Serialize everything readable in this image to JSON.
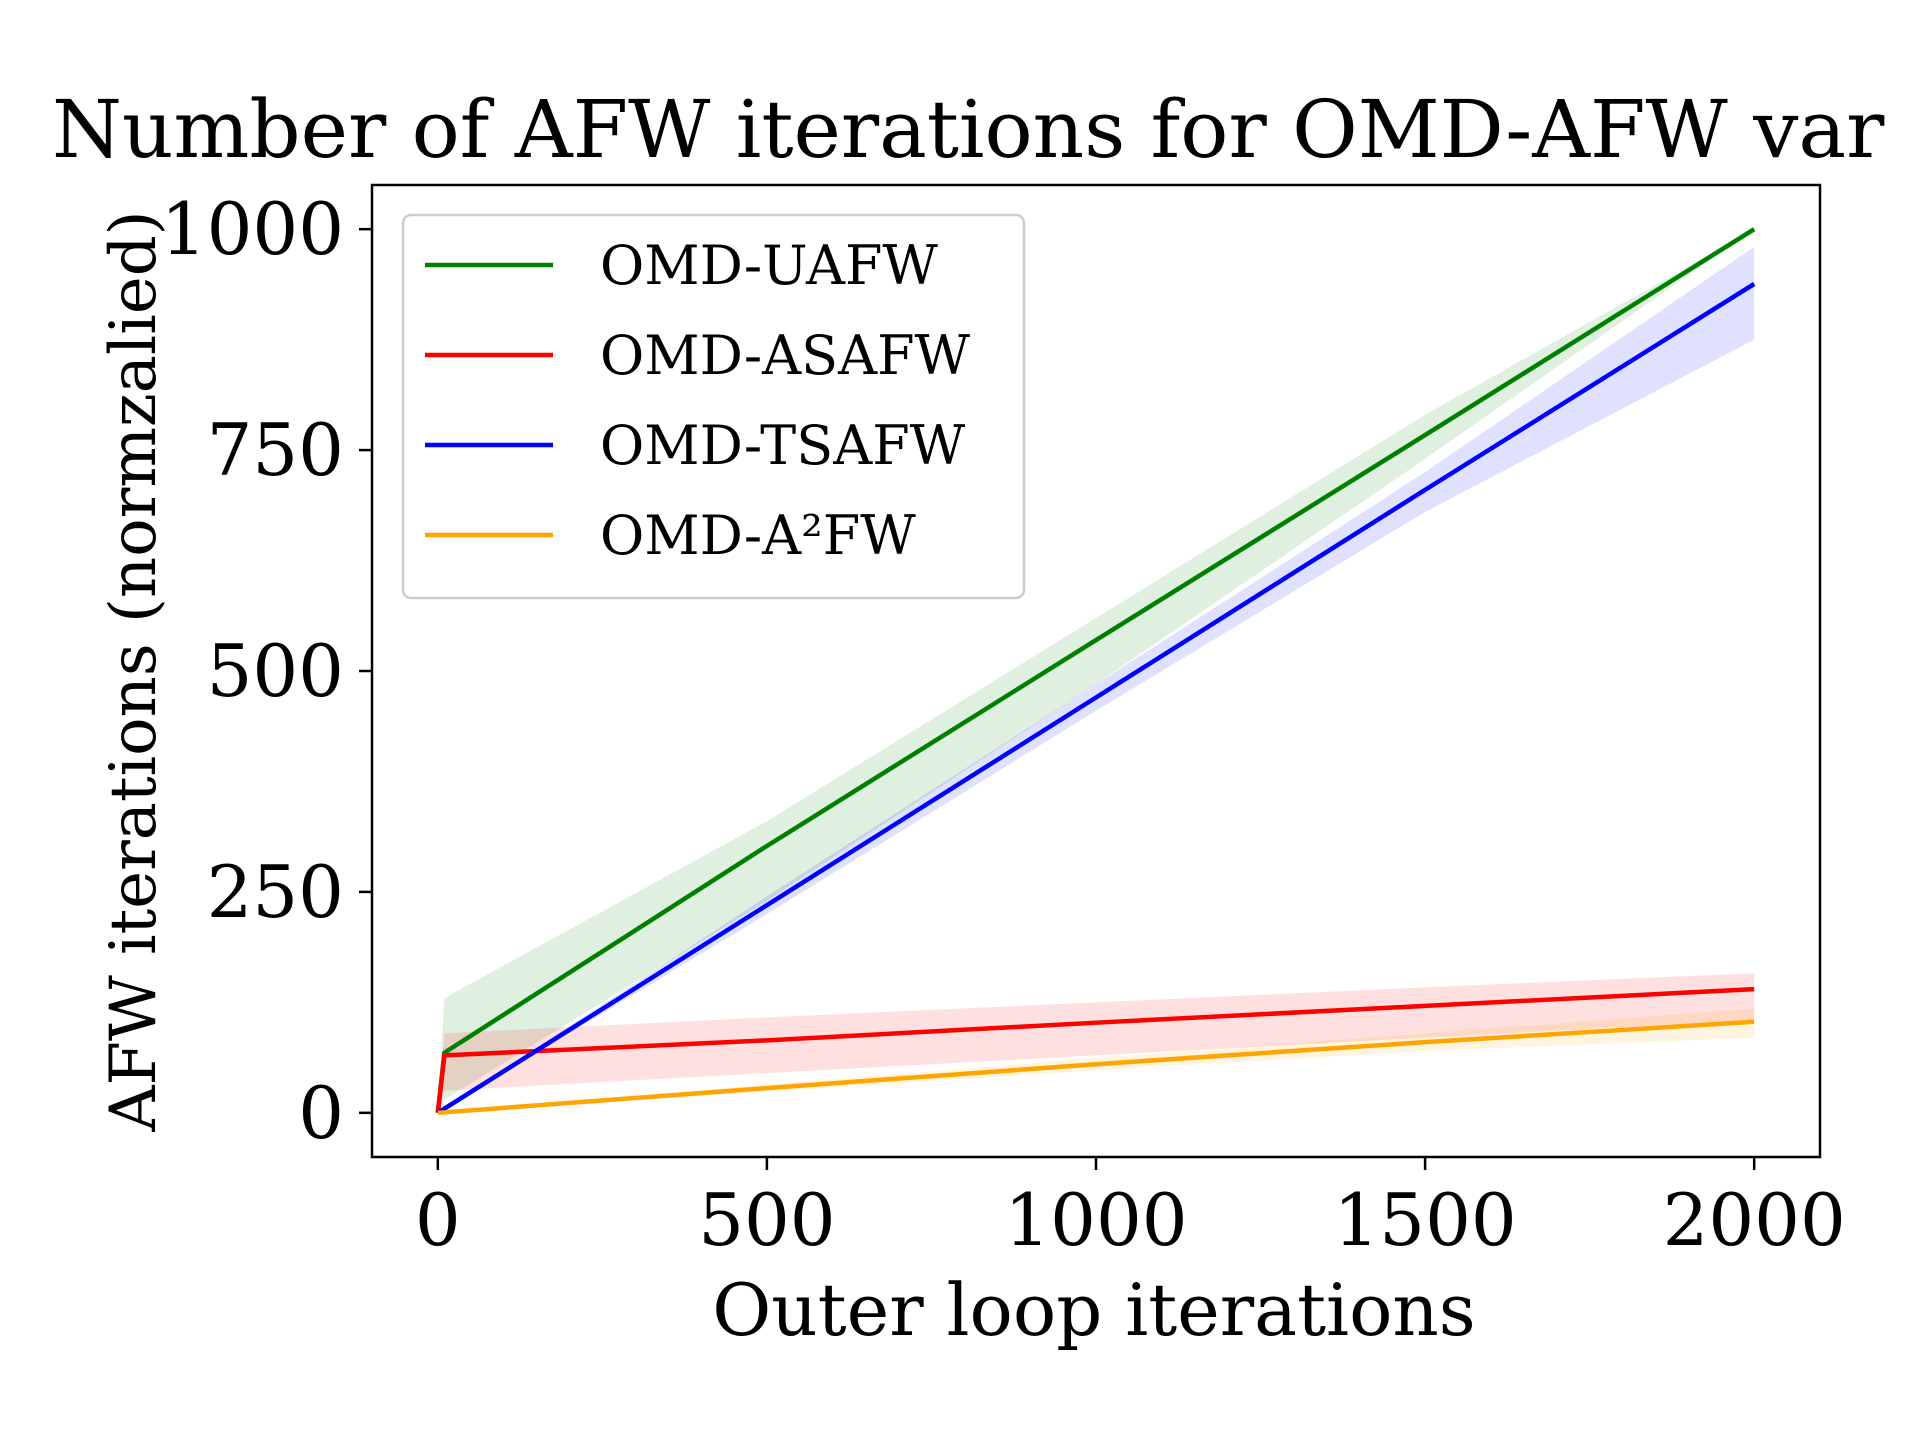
{
  "chart_data": {
    "type": "line",
    "title": "Number of AFW iterations for OMD-AFW var",
    "xlabel": "Outer loop iterations",
    "ylabel": "AFW iterations (normzalied)",
    "xlim": [
      -100,
      2100
    ],
    "ylim": [
      -50,
      1050
    ],
    "xticks": [
      0,
      500,
      1000,
      1500,
      2000
    ],
    "yticks": [
      0,
      250,
      500,
      750,
      1000
    ],
    "grid": false,
    "legend_position": "top-left",
    "series": [
      {
        "name": "OMD-UAFW",
        "color": "#008000",
        "x": [
          0,
          10,
          500,
          1000,
          1500,
          2000
        ],
        "y": [
          0,
          68,
          302,
          535,
          767,
          1000
        ],
        "lower": [
          0,
          15,
          240,
          485,
          740,
          1000
        ],
        "upper": [
          0,
          130,
          330,
          560,
          790,
          1000
        ]
      },
      {
        "name": "OMD-ASAFW",
        "color": "#ff0000",
        "x": [
          0,
          10,
          500,
          1000,
          1500,
          2000
        ],
        "y": [
          0,
          65,
          82,
          102,
          121,
          140
        ],
        "lower": [
          0,
          25,
          45,
          65,
          85,
          105
        ],
        "upper": [
          0,
          90,
          108,
          125,
          142,
          158
        ]
      },
      {
        "name": "OMD-TSAFW",
        "color": "#0000ff",
        "x": [
          0,
          500,
          1000,
          1500,
          2000
        ],
        "y": [
          0,
          235,
          470,
          705,
          938
        ],
        "lower": [
          0,
          225,
          455,
          680,
          875
        ],
        "upper": [
          0,
          245,
          485,
          725,
          980
        ]
      },
      {
        "name": "OMD-A²FW",
        "color": "#ffa500",
        "x": [
          0,
          500,
          1000,
          1500,
          2000
        ],
        "y": [
          0,
          28,
          55,
          80,
          103
        ],
        "lower": [
          0,
          24,
          48,
          70,
          85
        ],
        "upper": [
          0,
          32,
          62,
          90,
          118
        ]
      }
    ]
  }
}
